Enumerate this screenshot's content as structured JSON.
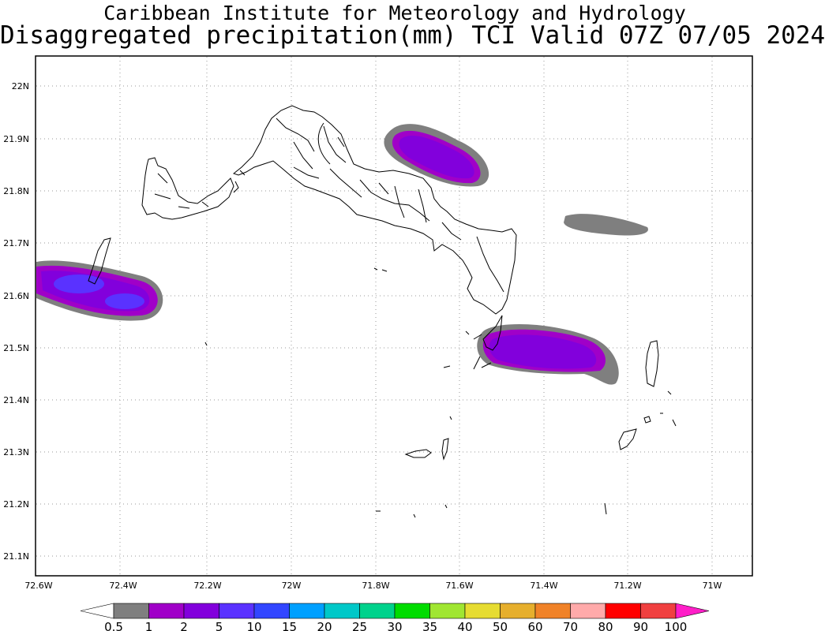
{
  "header": {
    "institute": "Caribbean Institute for Meteorology and Hydrology",
    "product": "Disaggregated precipitation(mm) TCI Valid 07Z 07/05 2024"
  },
  "map": {
    "lon_ticks": [
      "72.6W",
      "72.4W",
      "72.2W",
      "72W",
      "71.8W",
      "71.6W",
      "71.4W",
      "71.2W",
      "71W"
    ],
    "lat_ticks": [
      "22N",
      "21.9N",
      "21.8N",
      "21.7N",
      "21.6N",
      "21.5N",
      "21.4N",
      "21.3N",
      "21.2N",
      "21.1N"
    ],
    "grid": true
  },
  "colorbar": {
    "labels": [
      "0.5",
      "1",
      "2",
      "5",
      "10",
      "15",
      "20",
      "25",
      "30",
      "35",
      "40",
      "50",
      "60",
      "70",
      "80",
      "90",
      "100"
    ],
    "colors": [
      "#7f7f7f",
      "#a000c8",
      "#8200dc",
      "#5a32ff",
      "#3246ff",
      "#00a0ff",
      "#00c8c8",
      "#00d28c",
      "#00dc00",
      "#a0e632",
      "#e6dc32",
      "#e6af2d",
      "#f08228",
      "#ffaaaa",
      "#ff0000",
      "#f04040"
    ],
    "below_color": "#ffffff",
    "above_color": "#ff1ec8"
  }
}
